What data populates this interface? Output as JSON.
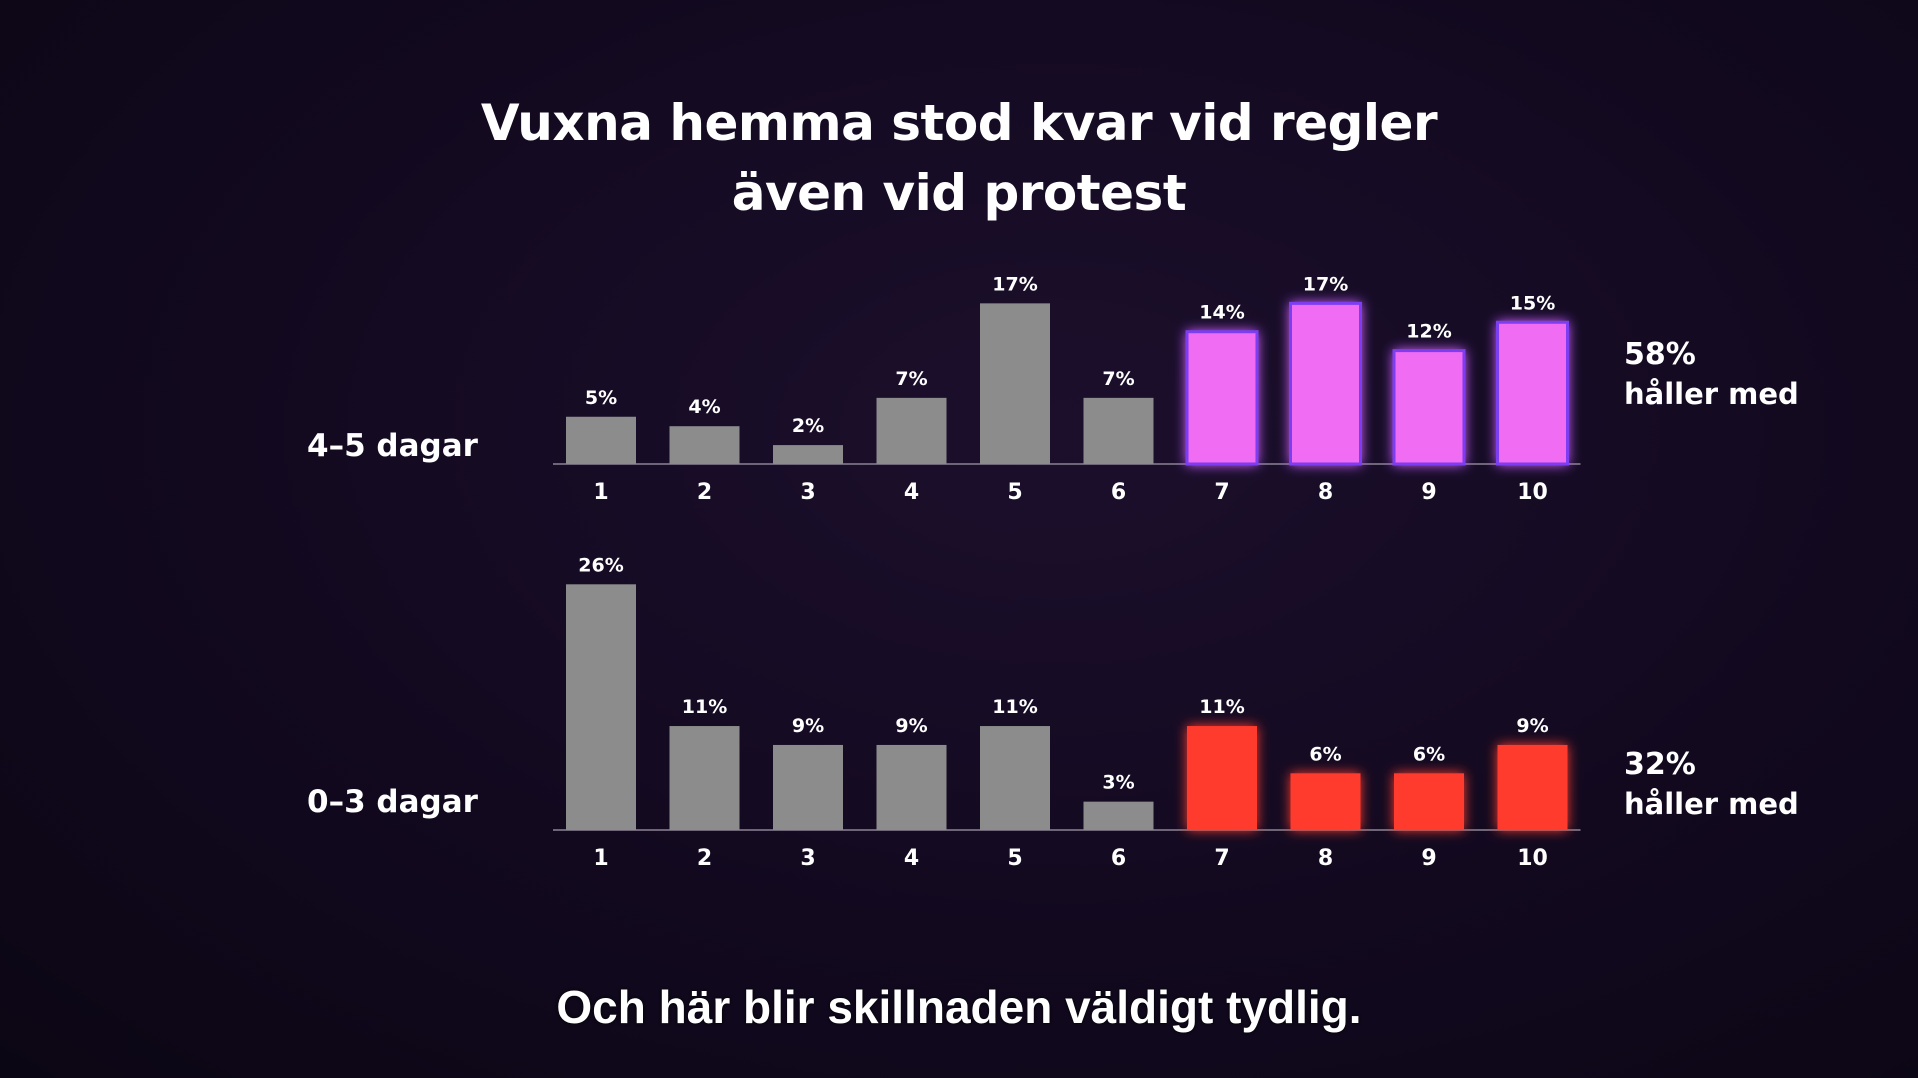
{
  "title": {
    "line1": "Vuxna hemma stod kvar vid regler",
    "line2": "även vid protest"
  },
  "subtitle": "Och här blir skillnaden väldigt tydlig.",
  "colors": {
    "gray_bar": "#8c8c8c",
    "highlight_top": "#f06cf2",
    "highlight_top_edge": "#7d3cf0",
    "highlight_bottom": "#ff3a2e",
    "baseline": "#6e6678"
  },
  "chart_data": [
    {
      "type": "bar",
      "series_label": "4–5 dagar",
      "categories": [
        "1",
        "2",
        "3",
        "4",
        "5",
        "6",
        "7",
        "8",
        "9",
        "10"
      ],
      "values": [
        5,
        4,
        2,
        7,
        17,
        7,
        14,
        17,
        12,
        15
      ],
      "value_labels": [
        "5%",
        "4%",
        "2%",
        "7%",
        "17%",
        "7%",
        "14%",
        "17%",
        "12%",
        "15%"
      ],
      "highlight_from_category": "7",
      "summary_value": "58%",
      "summary_text": "håller med"
    },
    {
      "type": "bar",
      "series_label": "0–3 dagar",
      "categories": [
        "1",
        "2",
        "3",
        "4",
        "5",
        "6",
        "7",
        "8",
        "9",
        "10"
      ],
      "values": [
        26,
        11,
        9,
        9,
        11,
        3,
        11,
        6,
        6,
        9
      ],
      "value_labels": [
        "26%",
        "11%",
        "9%",
        "9%",
        "11%",
        "3%",
        "11%",
        "6%",
        "6%",
        "9%"
      ],
      "highlight_from_category": "7",
      "summary_value": "32%",
      "summary_text": "håller med"
    }
  ]
}
